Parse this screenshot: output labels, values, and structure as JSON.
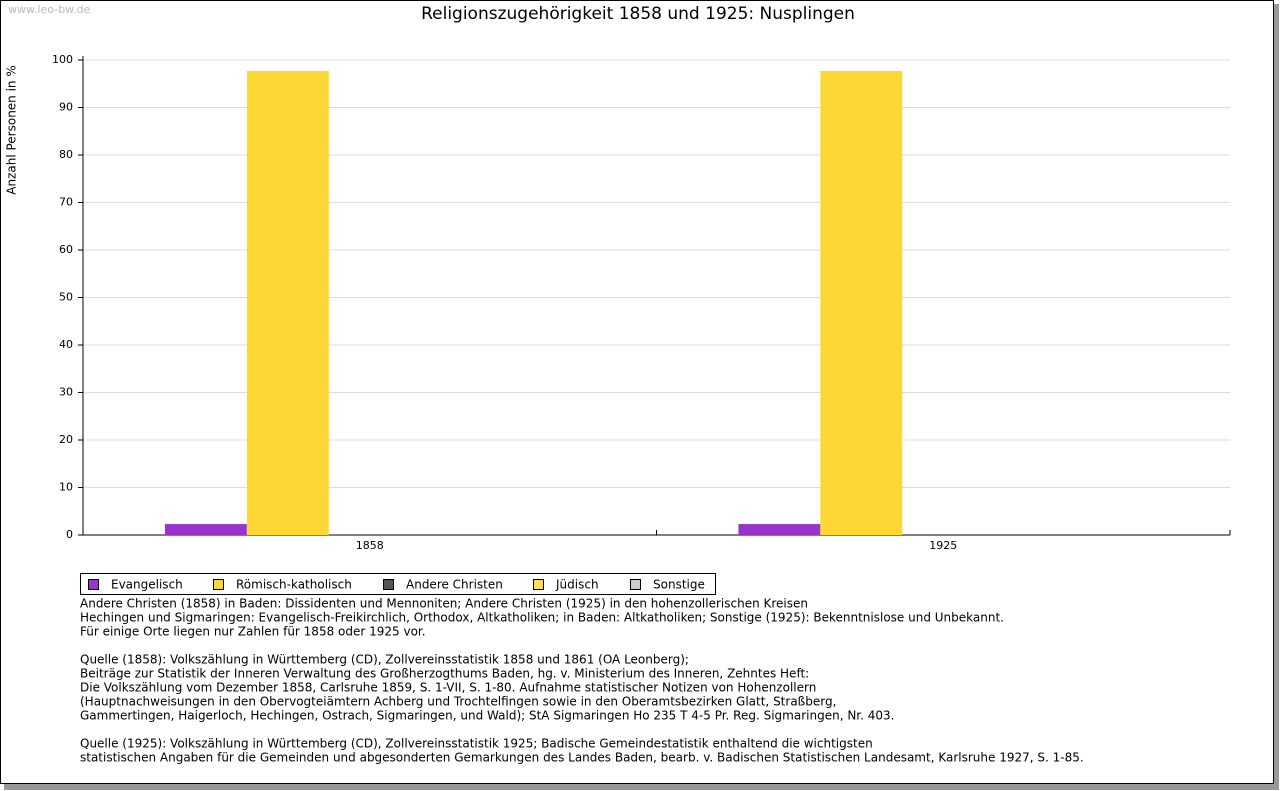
{
  "watermark": "www.leo-bw.de",
  "chart_data": {
    "type": "bar",
    "title": "Religionszugehörigkeit 1858 und 1925: Nusplingen",
    "y_label": "Anzahl Personen in %",
    "categories": [
      "1858",
      "1925"
    ],
    "series": [
      {
        "name": "Evangelisch",
        "color": "#9933cc",
        "values": [
          2.3,
          2.3
        ]
      },
      {
        "name": "Römisch-katholisch",
        "color": "#fdd835",
        "values": [
          97.7,
          97.7
        ]
      },
      {
        "name": "Andere Christen",
        "color": "#555555",
        "values": [
          0,
          0
        ]
      },
      {
        "name": "Jüdisch",
        "color": "#ffdd55",
        "values": [
          0,
          0
        ]
      },
      {
        "name": "Sonstige",
        "color": "#cccccc",
        "values": [
          0,
          0
        ]
      }
    ],
    "ylim": [
      0,
      100
    ],
    "yticks": [
      0,
      10,
      20,
      30,
      40,
      50,
      60,
      70,
      80,
      90,
      100
    ],
    "grid": true
  },
  "notes": [
    [
      "Andere Christen (1858) in Baden: Dissidenten und Mennoniten; Andere Christen (1925) in den hohenzollerischen Kreisen",
      "Hechingen und Sigmaringen: Evangelisch-Freikirchlich, Orthodox, Altkatholiken; in Baden: Altkatholiken; Sonstige (1925): Bekenntnislose und Unbekannt.",
      "Für einige Orte liegen nur Zahlen für 1858 oder 1925 vor."
    ],
    [
      "Quelle (1858): Volkszählung in Württemberg (CD), Zollvereinsstatistik 1858 und 1861 (OA Leonberg);",
      "Beiträge zur Statistik der Inneren Verwaltung des Großherzogthums Baden, hg. v. Ministerium des Inneren, Zehntes Heft:",
      "Die Volkszählung vom Dezember 1858, Carlsruhe 1859, S. 1-VII, S. 1-80. Aufnahme statistischer Notizen von Hohenzollern",
      "(Hauptnachweisungen in den Obervogteiämtern Achberg und Trochtelfingen sowie in den Oberamtsbezirken Glatt, Straßberg,",
      "Gammertingen, Haigerloch, Hechingen, Ostrach, Sigmaringen, und Wald); StA Sigmaringen Ho 235 T 4-5 Pr. Reg. Sigmaringen, Nr. 403."
    ],
    [
      "Quelle (1925): Volkszählung in Württemberg (CD), Zollvereinsstatistik 1925; Badische Gemeindestatistik enthaltend die wichtigsten",
      "statistischen Angaben für die Gemeinden und abgesonderten Gemarkungen des Landes Baden, bearb. v. Badischen Statistischen Landesamt, Karlsruhe 1927, S. 1-85."
    ]
  ]
}
